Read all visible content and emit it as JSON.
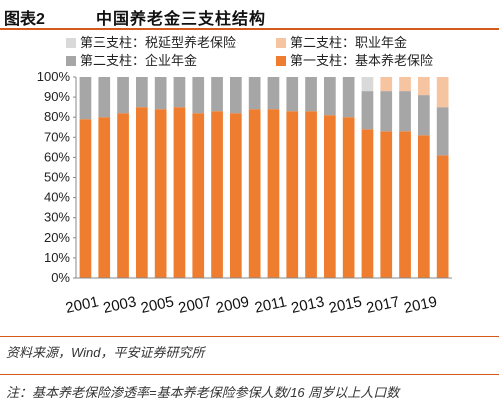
{
  "header": {
    "figure_label": "图表2",
    "title": "中国养老金三支柱结构"
  },
  "source": "资料来源，Wind，平安证券研究所",
  "note": "注：基本养老保险渗透率=基本养老保险参保人数/16 周岁以上人口数",
  "colors": {
    "accent": "#d35a1a",
    "pillar1": "#ef7d2f",
    "pillar2_enterprise": "#a6a6a6",
    "pillar2_occupational": "#f7c4a1",
    "pillar3": "#d9d9d9"
  },
  "chart_data": {
    "type": "bar",
    "stacked": true,
    "categories": [
      "2001",
      "2002",
      "2003",
      "2004",
      "2005",
      "2006",
      "2007",
      "2008",
      "2009",
      "2010",
      "2011",
      "2012",
      "2013",
      "2014",
      "2015",
      "2016",
      "2017",
      "2018",
      "2019",
      "2020"
    ],
    "xtick_labels": [
      "2001",
      "2003",
      "2005",
      "2007",
      "2009",
      "2011",
      "2013",
      "2015",
      "2017",
      "2019"
    ],
    "ylim": [
      0,
      100
    ],
    "yticks": [
      "0%",
      "10%",
      "20%",
      "30%",
      "40%",
      "50%",
      "60%",
      "70%",
      "80%",
      "90%",
      "100%"
    ],
    "legend_position": "top",
    "series": [
      {
        "name": "第一支柱：基本养老保险",
        "values": [
          79,
          80,
          82,
          85,
          84,
          85,
          82,
          83,
          82,
          84,
          84,
          83,
          83,
          81,
          80,
          74,
          73,
          73,
          71,
          61
        ]
      },
      {
        "name": "第二支柱：企业年金",
        "values": [
          21,
          20,
          18,
          15,
          16,
          15,
          18,
          17,
          18,
          16,
          16,
          17,
          17,
          19,
          20,
          19,
          20,
          20,
          20,
          24
        ]
      },
      {
        "name": "第二支柱：职业年金",
        "values": [
          0,
          0,
          0,
          0,
          0,
          0,
          0,
          0,
          0,
          0,
          0,
          0,
          0,
          0,
          0,
          0,
          7,
          7,
          9,
          15
        ]
      },
      {
        "name": "第三支柱：税延型养老保险",
        "values": [
          0,
          0,
          0,
          0,
          0,
          0,
          0,
          0,
          0,
          0,
          0,
          0,
          0,
          0,
          0,
          7,
          0,
          0,
          0,
          0
        ]
      }
    ],
    "legend": [
      {
        "name": "第三支柱：税延型养老保险",
        "color": "#d9d9d9"
      },
      {
        "name": "第二支柱：职业年金",
        "color": "#f7c4a1"
      },
      {
        "name": "第二支柱：企业年金",
        "color": "#a6a6a6"
      },
      {
        "name": "第一支柱：基本养老保险",
        "color": "#ef7d2f"
      }
    ]
  }
}
